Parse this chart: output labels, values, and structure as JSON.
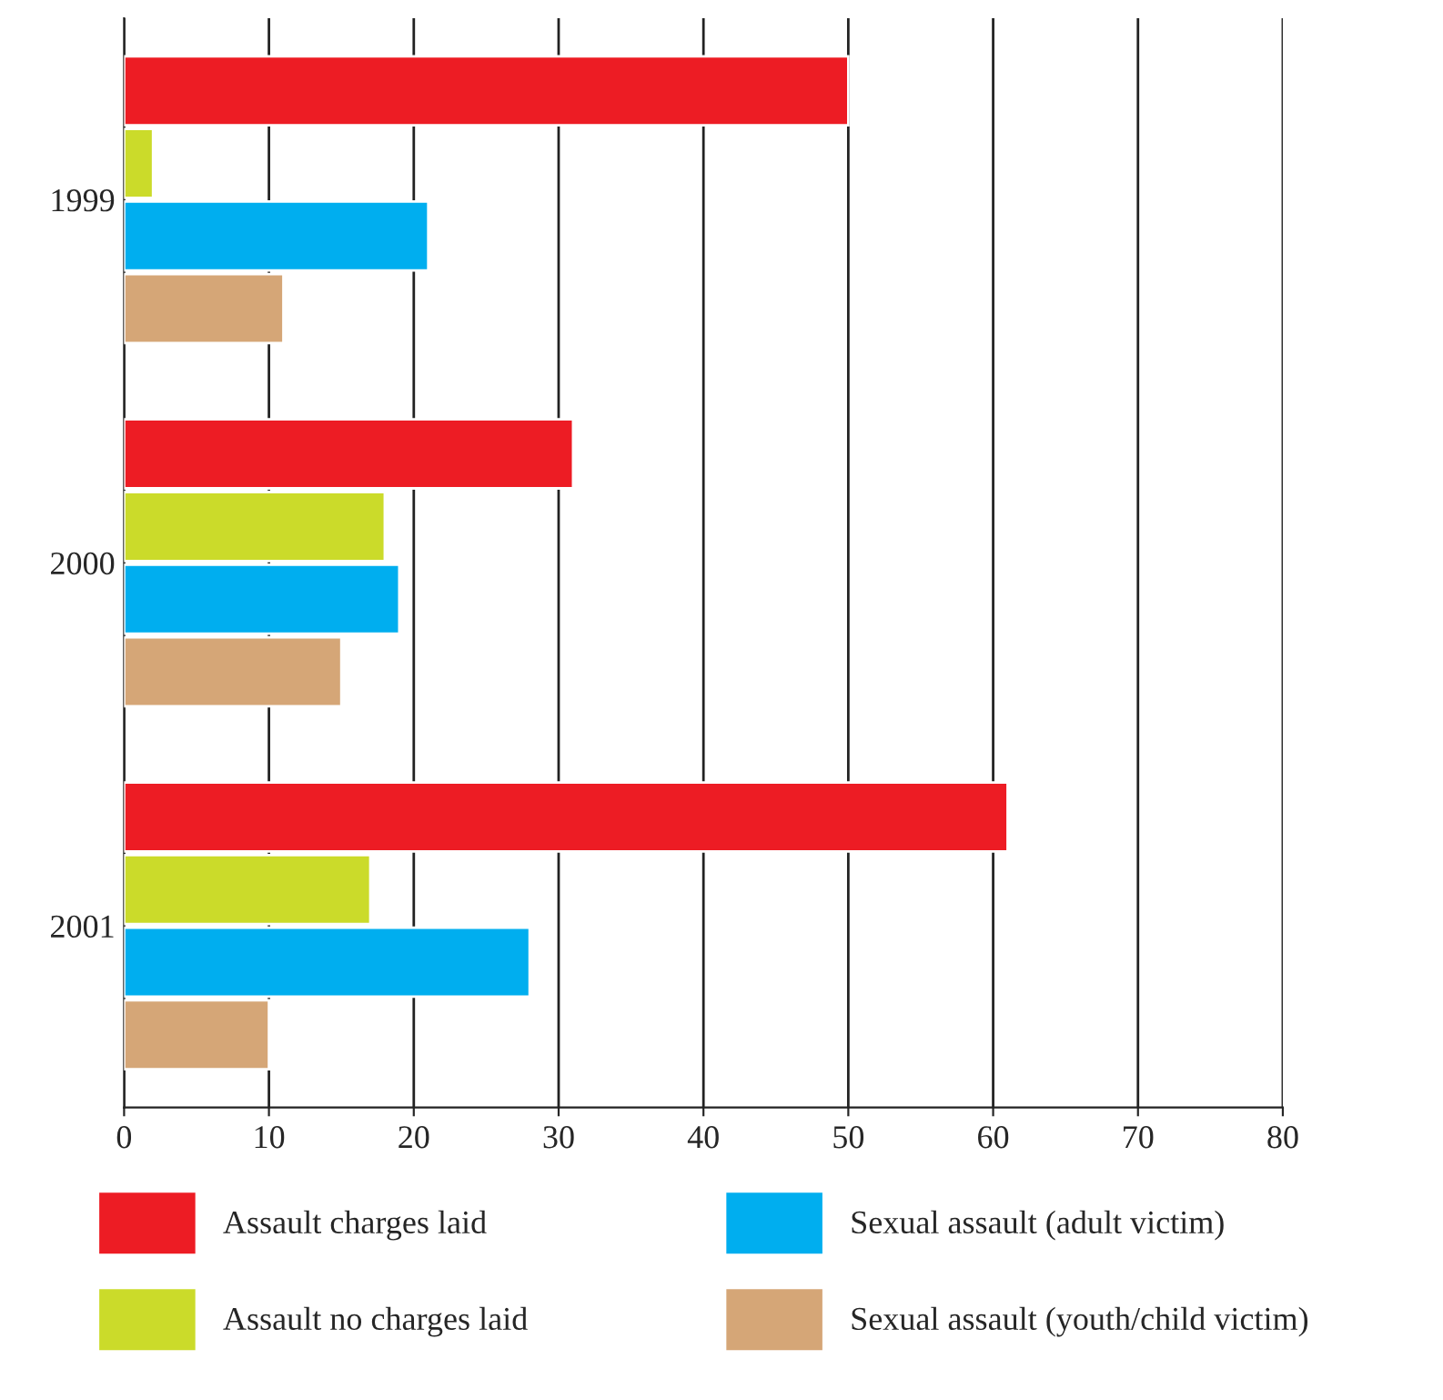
{
  "chart_data": {
    "type": "bar",
    "orientation": "horizontal",
    "categories": [
      "1999",
      "2000",
      "2001"
    ],
    "series": [
      {
        "name": "Assault charges laid",
        "color": "#ed1c24",
        "values": [
          50,
          31,
          61
        ]
      },
      {
        "name": "Assault no charges laid",
        "color": "#cbdb2a",
        "values": [
          2,
          18,
          17
        ]
      },
      {
        "name": "Sexual assault (adult victim)",
        "color": "#00aeef",
        "values": [
          21,
          19,
          28
        ]
      },
      {
        "name": "Sexual assault (youth/child victim)",
        "color": "#d5a677",
        "values": [
          11,
          15,
          10
        ]
      }
    ],
    "xlim": [
      0,
      80
    ],
    "xticks": [
      0,
      10,
      20,
      30,
      40,
      50,
      60,
      70,
      80
    ],
    "grid": "x",
    "legend": "bottom"
  }
}
